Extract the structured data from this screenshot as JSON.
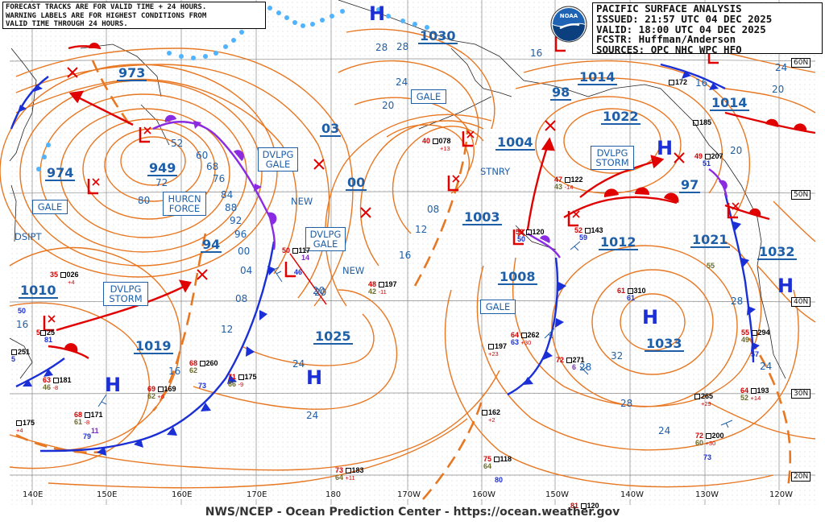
{
  "header_left": {
    "lines": [
      "FORECAST TRACKS ARE FOR VALID TIME + 24 HOURS.",
      "WARNING LABELS ARE FOR HIGHEST CONDITIONS FROM",
      "VALID TIME THROUGH 24 HOURS."
    ]
  },
  "header_right": {
    "lines": [
      "PACIFIC SURFACE ANALYSIS",
      "ISSUED: 21:57 UTC 04 DEC 2025",
      "VALID:  18:00 UTC 04 DEC 2025",
      "FCSTR:  Huffman/Anderson",
      "SOURCES: OPC NHC WPC HFO"
    ]
  },
  "logo": {
    "text": "NOAA",
    "icon": "noaa-logo-icon",
    "color": "#1e63b4"
  },
  "footer": "NWS/NCEP - Ocean Prediction Center - https://ocean.weather.gov",
  "colors": {
    "isobar": "#e87722",
    "cold_front": "#1a2fd6",
    "warm_front": "#e00000",
    "occluded_front": "#8a2be2",
    "stationary_front_ice": "#4fb3ff",
    "track": "#e00000",
    "text_blue": "#1f5fa8"
  },
  "longitude_labels": [
    "140E",
    "150E",
    "160E",
    "170E",
    "180",
    "170W",
    "160W",
    "150W",
    "140W",
    "130W",
    "120W"
  ],
  "latitude_labels": [
    "60N",
    "50N",
    "40N",
    "30N",
    "20N"
  ],
  "warning_boxes": [
    {
      "id": "gale-w",
      "lines": [
        "GALE"
      ]
    },
    {
      "id": "hurcn",
      "lines": [
        "HURCN",
        "FORCE"
      ]
    },
    {
      "id": "dvlpg-storm-w",
      "lines": [
        "DVLPG",
        "STORM"
      ]
    },
    {
      "id": "dvlpg-gale-1",
      "lines": [
        "DVLPG",
        "GALE"
      ]
    },
    {
      "id": "dvlpg-gale-2",
      "lines": [
        "DVLPG",
        "GALE"
      ]
    },
    {
      "id": "gale-ak",
      "lines": [
        "GALE"
      ]
    },
    {
      "id": "gale-c",
      "lines": [
        "GALE"
      ]
    },
    {
      "id": "dvlpg-storm-e",
      "lines": [
        "DVLPG",
        "STORM"
      ]
    }
  ],
  "free_labels": {
    "dsipt": "DSIPT",
    "new1": "NEW",
    "new2": "NEW",
    "stnry": "STNRY"
  },
  "pressure_values": [
    {
      "id": "p-973",
      "text": "973"
    },
    {
      "id": "p-949",
      "text": "949"
    },
    {
      "id": "p-974",
      "text": "974"
    },
    {
      "id": "p-1010",
      "text": "1010"
    },
    {
      "id": "p-1019",
      "text": "1019"
    },
    {
      "id": "p-94",
      "text": "94"
    },
    {
      "id": "p-03",
      "text": "03"
    },
    {
      "id": "p-00",
      "text": "00"
    },
    {
      "id": "p-1025",
      "text": "1025"
    },
    {
      "id": "p-1030",
      "text": "1030"
    },
    {
      "id": "p-1004",
      "text": "1004"
    },
    {
      "id": "p-1003",
      "text": "1003"
    },
    {
      "id": "p-1008",
      "text": "1008"
    },
    {
      "id": "p-98",
      "text": "98"
    },
    {
      "id": "p-1014a",
      "text": "1014"
    },
    {
      "id": "p-1022",
      "text": "1022"
    },
    {
      "id": "p-1014b",
      "text": "1014"
    },
    {
      "id": "p-97",
      "text": "97"
    },
    {
      "id": "p-1012",
      "text": "1012"
    },
    {
      "id": "p-1021",
      "text": "1021"
    },
    {
      "id": "p-1032",
      "text": "1032"
    },
    {
      "id": "p-1033",
      "text": "1033"
    }
  ],
  "isobar_labels": [
    "52",
    "60",
    "68",
    "72",
    "76",
    "80",
    "84",
    "88",
    "92",
    "96",
    "00",
    "04",
    "08",
    "12",
    "16",
    "20",
    "24",
    "28",
    "16",
    "24",
    "20",
    "24",
    "28",
    "16",
    "12",
    "08",
    "16",
    "20",
    "28",
    "32",
    "24",
    "20",
    "28",
    "24",
    "28",
    "16",
    "24",
    "20"
  ],
  "highs": [
    "H",
    "H",
    "H",
    "H",
    "H",
    "H"
  ],
  "station_obs": [
    {
      "t": "35",
      "p": "026",
      "tend": "+4",
      "d": ""
    },
    {
      "t": "50",
      "p": "",
      "tend": "",
      "d": ""
    },
    {
      "t": "5",
      "p": "25",
      "tend": "",
      "d": "81"
    },
    {
      "t": "",
      "p": "251",
      "tend": "",
      "d": "5"
    },
    {
      "t": "63",
      "p": "181",
      "tend": "-8",
      "d": "46"
    },
    {
      "t": "",
      "p": "175",
      "tend": "+4",
      "d": ""
    },
    {
      "t": "68",
      "p": "171",
      "tend": "-8",
      "d": "61"
    },
    {
      "t": "",
      "p": "",
      "tend": "",
      "d": "11"
    },
    {
      "t": "",
      "p": "",
      "tend": "",
      "d": "79"
    },
    {
      "t": "69",
      "p": "169",
      "tend": "+6",
      "d": "62"
    },
    {
      "t": "68",
      "p": "260",
      "tend": "",
      "d": "62"
    },
    {
      "t": "",
      "p": "",
      "tend": "",
      "d": "73"
    },
    {
      "t": "71",
      "p": "175",
      "tend": "-9",
      "d": "66"
    },
    {
      "t": "50",
      "p": "117",
      "tend": "",
      "d": "14"
    },
    {
      "t": "",
      "p": "",
      "tend": "",
      "d": "46"
    },
    {
      "t": "48",
      "p": "197",
      "tend": "-11",
      "d": "42"
    },
    {
      "t": "73",
      "p": "183",
      "tend": "+11",
      "d": "64"
    },
    {
      "t": "40",
      "p": "078",
      "tend": "+13",
      "d": ""
    },
    {
      "t": "50",
      "p": "120",
      "tend": "",
      "d": "50"
    },
    {
      "t": "52",
      "p": "143",
      "tend": "",
      "d": "59"
    },
    {
      "t": "47",
      "p": "122",
      "tend": "-14",
      "d": "43"
    },
    {
      "t": "64",
      "p": "262",
      "tend": "+30",
      "d": "63"
    },
    {
      "t": "",
      "p": "197",
      "tend": "+23",
      "d": ""
    },
    {
      "t": "72",
      "p": "271",
      "tend": "",
      "d": "6"
    },
    {
      "t": "61",
      "p": "310",
      "tend": "",
      "d": "61"
    },
    {
      "t": "",
      "p": "162",
      "tend": "+2",
      "d": ""
    },
    {
      "t": "75",
      "p": "118",
      "tend": "",
      "d": "64"
    },
    {
      "t": "",
      "p": "",
      "tend": "",
      "d": "80"
    },
    {
      "t": "81",
      "p": "120",
      "tend": "",
      "d": ""
    },
    {
      "t": "",
      "p": "265",
      "tend": "+29",
      "d": ""
    },
    {
      "t": "72",
      "p": "200",
      "tend": "+30",
      "d": "60"
    },
    {
      "t": "",
      "p": "",
      "tend": "",
      "d": "73"
    },
    {
      "t": "64",
      "p": "193",
      "tend": "+14",
      "d": "52"
    },
    {
      "t": "55",
      "p": "294",
      "tend": "",
      "d": "49"
    },
    {
      "t": "",
      "p": "",
      "tend": "",
      "d": "57"
    },
    {
      "t": "49",
      "p": "207",
      "tend": "",
      "d": "51"
    },
    {
      "t": "",
      "p": "172",
      "tend": "",
      "d": ""
    },
    {
      "t": "",
      "p": "185",
      "tend": "",
      "d": ""
    },
    {
      "t": "",
      "p": "",
      "tend": "",
      "d": "55"
    }
  ]
}
